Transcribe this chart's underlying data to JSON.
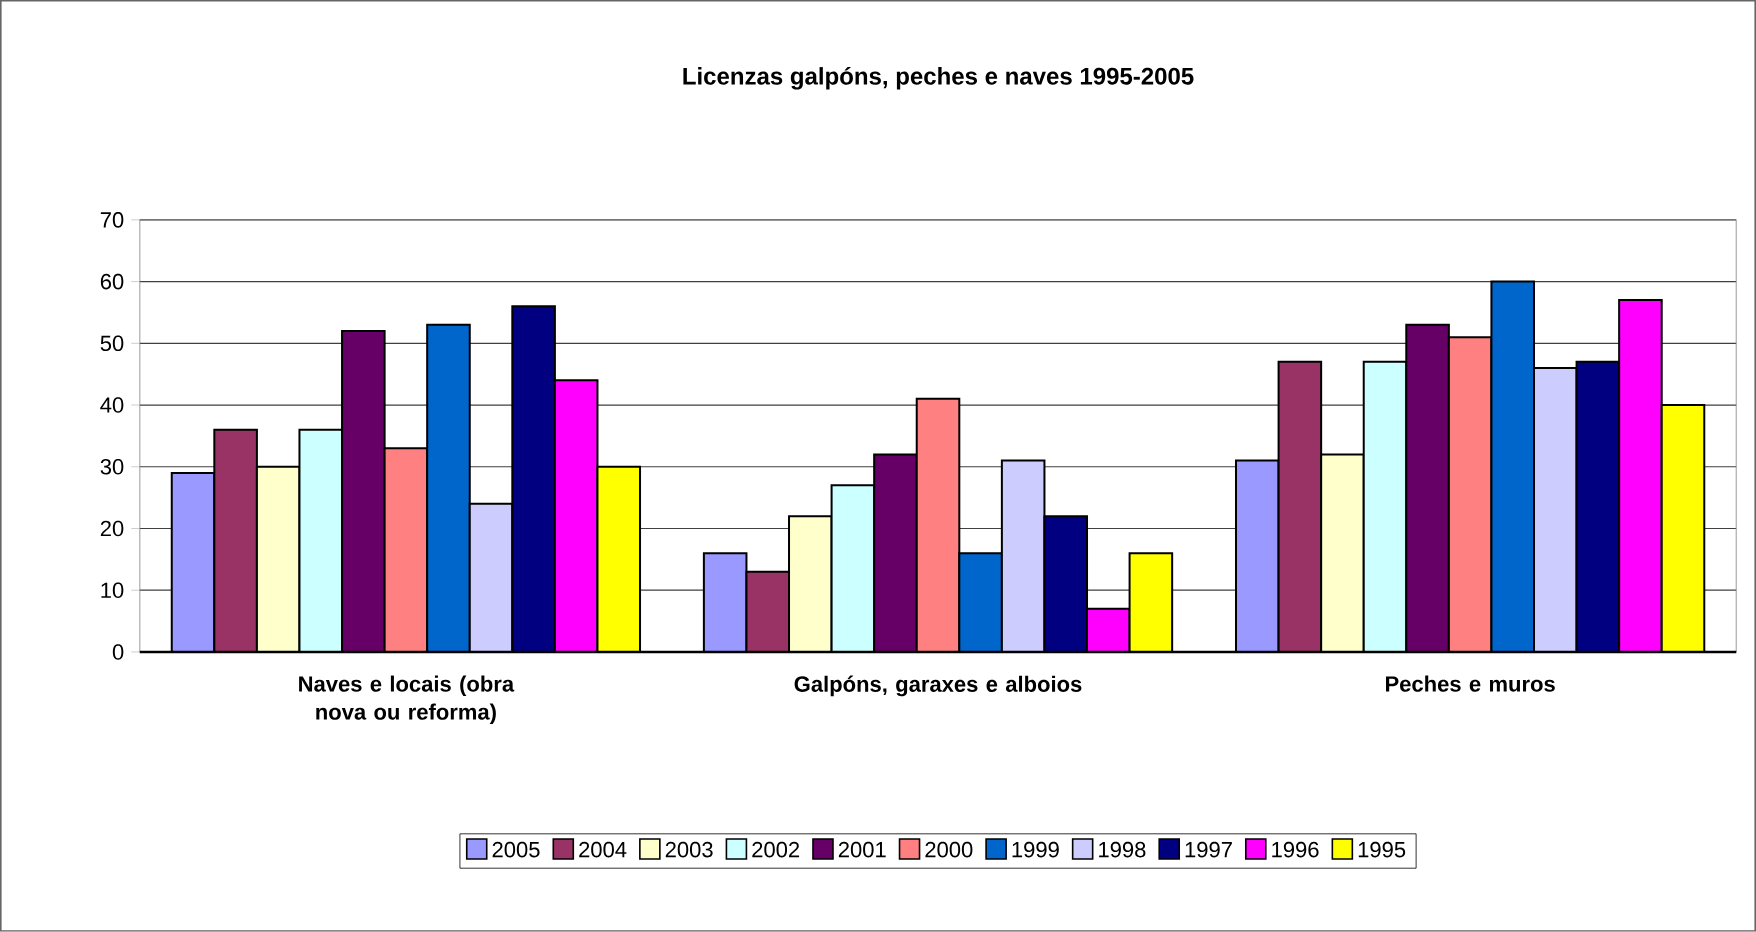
{
  "chart_data": {
    "type": "bar",
    "title": "Licenzas galpóns, peches e naves 1995-2005",
    "categories": [
      "Naves e locais (obra nova ou reforma)",
      "Galpóns, garaxes e alboios",
      "Peches e muros"
    ],
    "series": [
      {
        "name": "2005",
        "color": "#9999ff",
        "values": [
          29,
          16,
          31
        ]
      },
      {
        "name": "2004",
        "color": "#993366",
        "values": [
          36,
          13,
          47
        ]
      },
      {
        "name": "2003",
        "color": "#ffffcc",
        "values": [
          30,
          22,
          32
        ]
      },
      {
        "name": "2002",
        "color": "#ccffff",
        "values": [
          36,
          27,
          47
        ]
      },
      {
        "name": "2001",
        "color": "#660066",
        "values": [
          52,
          32,
          53
        ]
      },
      {
        "name": "2000",
        "color": "#ff8080",
        "values": [
          33,
          41,
          51
        ]
      },
      {
        "name": "1999",
        "color": "#0066cc",
        "values": [
          53,
          16,
          60
        ]
      },
      {
        "name": "1998",
        "color": "#ccccff",
        "values": [
          24,
          31,
          46
        ]
      },
      {
        "name": "1997",
        "color": "#000080",
        "values": [
          56,
          22,
          47
        ]
      },
      {
        "name": "1996",
        "color": "#ff00ff",
        "values": [
          44,
          7,
          57
        ]
      },
      {
        "name": "1995",
        "color": "#ffff00",
        "values": [
          30,
          16,
          40
        ]
      }
    ],
    "ylim": [
      0,
      70
    ],
    "yticks": [
      0,
      10,
      20,
      30,
      40,
      50,
      60,
      70
    ],
    "grid": "y",
    "legend": "bottom"
  }
}
